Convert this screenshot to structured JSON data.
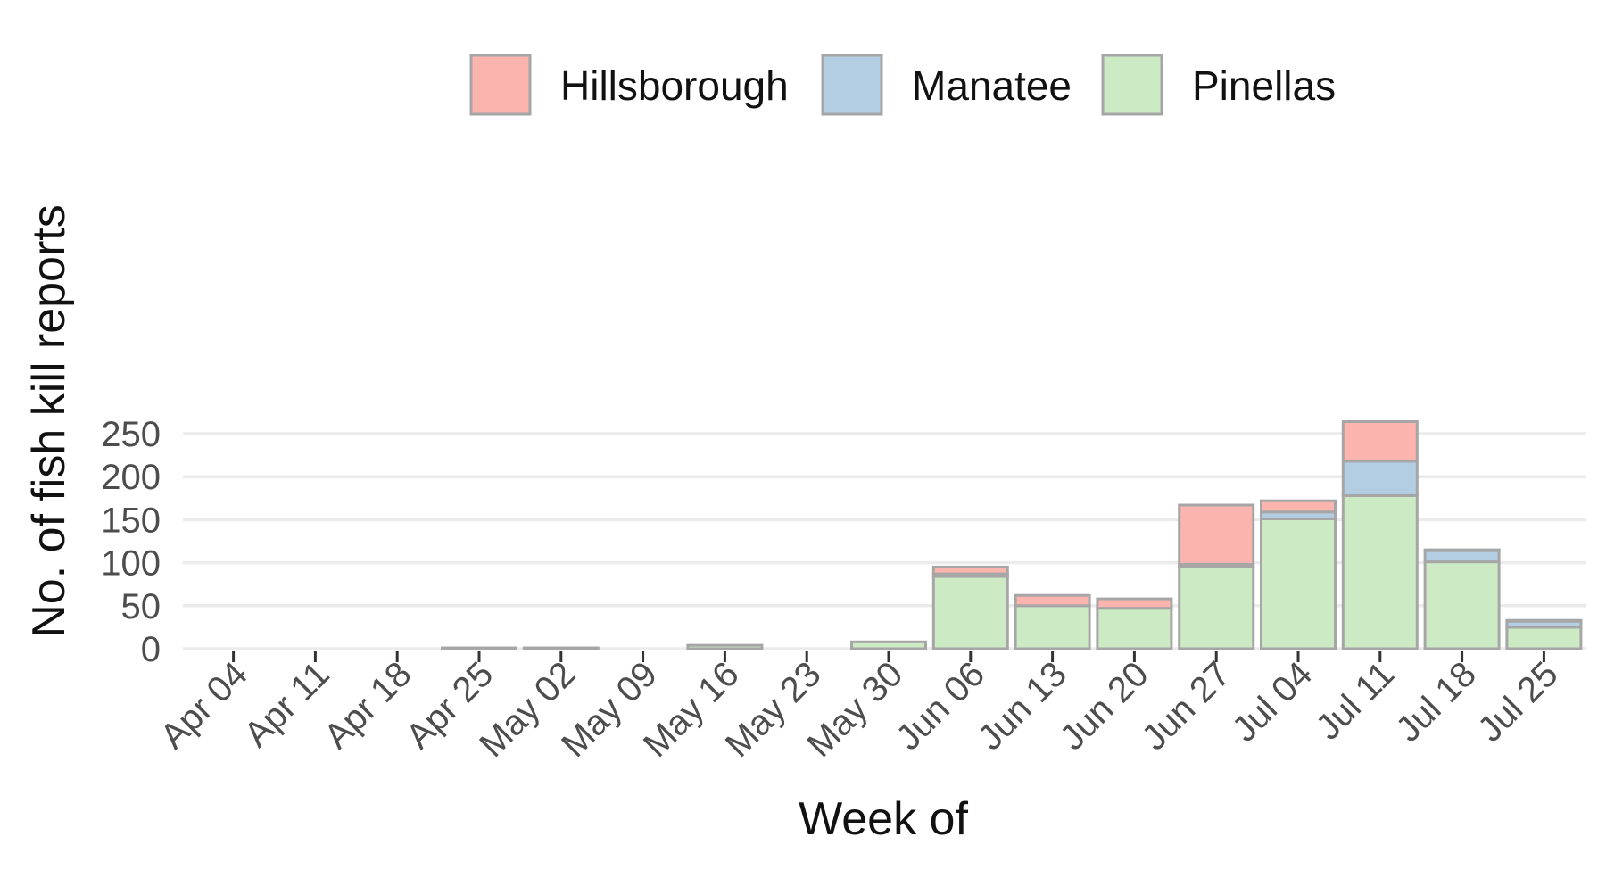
{
  "chart_data": {
    "type": "bar",
    "stacked": true,
    "xlabel": "Week of",
    "ylabel": "No. of fish kill reports",
    "ylim": [
      0,
      265
    ],
    "yticks": [
      0,
      50,
      100,
      150,
      200,
      250
    ],
    "grid": "horizontal",
    "legend_position": "top",
    "categories": [
      "Apr 04",
      "Apr 11",
      "Apr 18",
      "Apr 25",
      "May 02",
      "May 09",
      "May 16",
      "May 23",
      "May 30",
      "Jun 06",
      "Jun 13",
      "Jun 20",
      "Jun 27",
      "Jul 04",
      "Jul 11",
      "Jul 18",
      "Jul 25"
    ],
    "series": [
      {
        "name": "Pinellas",
        "fill": "#CCEBC5",
        "values": [
          0,
          0,
          0,
          1,
          1,
          0,
          4,
          0,
          8,
          84,
          50,
          47,
          95,
          151,
          178,
          101,
          25
        ]
      },
      {
        "name": "Manatee",
        "fill": "#B3CDE3",
        "values": [
          0,
          0,
          0,
          0,
          0,
          0,
          0,
          0,
          0,
          3,
          0,
          0,
          3,
          8,
          40,
          13,
          7
        ]
      },
      {
        "name": "Hillsborough",
        "fill": "#FBB4AE",
        "values": [
          0,
          0,
          0,
          0,
          0,
          0,
          0,
          0,
          0,
          8,
          12,
          11,
          69,
          13,
          46,
          1,
          1
        ]
      }
    ],
    "legend_order": [
      "Hillsborough",
      "Manatee",
      "Pinellas"
    ],
    "bar_stroke": "#A6A6A6",
    "grid_color": "#EBEBEB"
  }
}
